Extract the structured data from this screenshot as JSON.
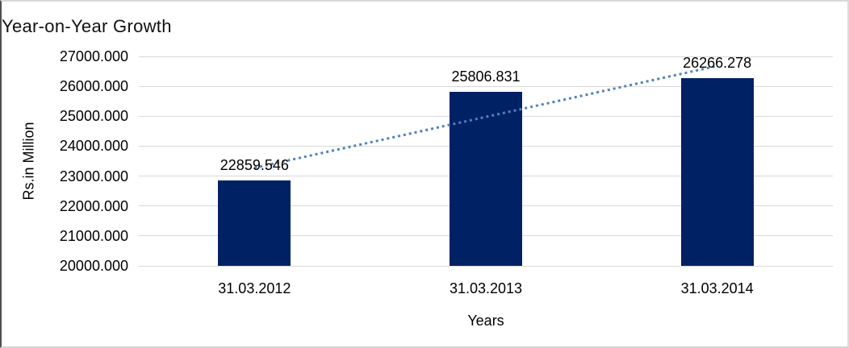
{
  "chart_data": {
    "type": "bar",
    "title": "Year-on-Year Growth",
    "xlabel": "Years",
    "ylabel": "Rs.in Million",
    "categories": [
      "31.03.2012",
      "31.03.2013",
      "31.03.2014"
    ],
    "values": [
      22859.546,
      25806.831,
      26266.278
    ],
    "data_labels": [
      "22859.546",
      "25806.831",
      "26266.278"
    ],
    "ylim": [
      20000,
      27000
    ],
    "y_tick_step": 1000,
    "y_tick_labels": [
      "27000.000",
      "26000.000",
      "25000.000",
      "24000.000",
      "23000.000",
      "22000.000",
      "21000.000",
      "20000.000"
    ],
    "grid": true,
    "legend": "none",
    "trendline": {
      "type": "linear",
      "style": "dotted"
    },
    "colors": {
      "bar": "#002264",
      "trendline": "#4f81bd",
      "gridline": "#d9d9d9",
      "text": "#000000",
      "background": "#ffffff"
    }
  }
}
